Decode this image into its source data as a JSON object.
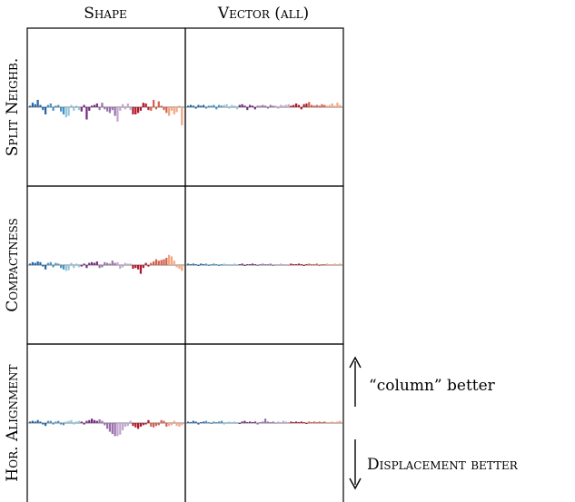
{
  "chart_data": {
    "type": "bar",
    "layout": "3x2 grid of small-multiple diverging bar charts",
    "column_headers": [
      "Shape",
      "Vector (all)"
    ],
    "row_headers": [
      "Split Neighb.",
      "Compactness",
      "Hor. Alignment"
    ],
    "palette": [
      "#2166ac",
      "#4393c3",
      "#92c5de",
      "#762a83",
      "#9970ab",
      "#c2a5cf",
      "#b2182b",
      "#d6604d",
      "#f4a582"
    ],
    "annotations": {
      "up": "“column” better",
      "down": "Displacement better"
    },
    "ylim": [
      -1,
      1
    ],
    "n_bars": 60,
    "panels": [
      {
        "row": 0,
        "col": 0,
        "values": [
          0.02,
          0.06,
          0.04,
          0.1,
          0.03,
          -0.04,
          -0.1,
          0.03,
          0.05,
          -0.05,
          0.02,
          0.03,
          -0.06,
          -0.1,
          -0.14,
          -0.12,
          0.03,
          -0.05,
          0.02,
          -0.04,
          -0.06,
          0.03,
          -0.17,
          -0.05,
          0.02,
          0.03,
          0.05,
          -0.04,
          0.06,
          -0.03,
          -0.06,
          -0.08,
          -0.04,
          -0.12,
          -0.2,
          -0.05,
          0.04,
          -0.03,
          0.05,
          -0.04,
          -0.1,
          -0.1,
          -0.08,
          -0.05,
          0.06,
          0.05,
          -0.04,
          -0.05,
          0.1,
          -0.03,
          0.08,
          0.02,
          -0.04,
          -0.08,
          -0.12,
          -0.05,
          -0.1,
          -0.07,
          0.02,
          -0.25
        ]
      },
      {
        "row": 0,
        "col": 1,
        "values": [
          0.02,
          0.03,
          0.02,
          -0.02,
          0.03,
          0.02,
          0.03,
          -0.02,
          0.02,
          0.02,
          0.03,
          -0.03,
          0.03,
          0.02,
          0.03,
          0.04,
          -0.02,
          0.03,
          0.02,
          -0.03,
          0.03,
          0.04,
          0.02,
          -0.04,
          0.03,
          0.02,
          -0.03,
          0.02,
          0.02,
          0.03,
          0.02,
          -0.02,
          0.03,
          0.02,
          0.02,
          -0.02,
          0.03,
          0.02,
          0.03,
          0.04,
          0.02,
          0.03,
          0.05,
          0.03,
          -0.03,
          0.04,
          0.05,
          0.07,
          0.03,
          0.02,
          0.03,
          0.02,
          0.04,
          0.03,
          0.02,
          0.03,
          0.05,
          0.02,
          0.06,
          0.03
        ]
      },
      {
        "row": 1,
        "col": 0,
        "values": [
          0.02,
          0.04,
          0.03,
          0.05,
          0.04,
          -0.02,
          -0.06,
          0.03,
          0.04,
          -0.03,
          0.03,
          0.02,
          -0.04,
          -0.06,
          -0.08,
          -0.07,
          0.03,
          -0.04,
          0.02,
          -0.03,
          -0.02,
          0.02,
          -0.04,
          0.03,
          0.04,
          0.03,
          0.05,
          -0.04,
          -0.03,
          0.04,
          0.03,
          0.02,
          0.06,
          0.03,
          0.04,
          -0.05,
          -0.03,
          0.03,
          0.02,
          0.02,
          -0.05,
          -0.04,
          -0.06,
          -0.12,
          -0.04,
          0.03,
          -0.02,
          0.03,
          0.05,
          0.08,
          0.06,
          0.07,
          0.08,
          0.1,
          0.14,
          0.12,
          0.06,
          -0.03,
          -0.05,
          -0.08
        ]
      },
      {
        "row": 1,
        "col": 1,
        "values": [
          0.02,
          0.01,
          0.02,
          0.01,
          -0.01,
          0.02,
          0.01,
          0.02,
          -0.01,
          0.01,
          0.02,
          0.01,
          -0.01,
          0.01,
          0.02,
          0.01,
          0.01,
          -0.01,
          0.02,
          0.01,
          0.01,
          0.02,
          -0.01,
          0.01,
          0.01,
          0.02,
          0.01,
          -0.01,
          0.01,
          0.02,
          0.01,
          0.01,
          0.02,
          -0.01,
          0.01,
          0.01,
          0.02,
          0.01,
          0.01,
          -0.01,
          0.02,
          0.01,
          0.01,
          0.02,
          0.01,
          -0.01,
          0.01,
          0.02,
          0.01,
          0.01,
          0.02,
          -0.01,
          0.01,
          0.01,
          0.02,
          0.01,
          0.01,
          0.02,
          0.01,
          0.02
        ]
      },
      {
        "row": 2,
        "col": 0,
        "values": [
          0.02,
          0.03,
          0.02,
          0.04,
          0.02,
          -0.02,
          -0.04,
          0.03,
          0.03,
          -0.02,
          0.02,
          0.03,
          -0.02,
          -0.03,
          0.02,
          0.03,
          0.04,
          -0.02,
          0.02,
          0.03,
          0.02,
          -0.02,
          0.03,
          0.04,
          0.06,
          0.04,
          0.03,
          0.05,
          0.03,
          -0.03,
          -0.08,
          -0.12,
          -0.15,
          -0.18,
          -0.18,
          -0.16,
          -0.1,
          -0.05,
          -0.04,
          0.03,
          -0.04,
          -0.06,
          -0.08,
          -0.05,
          -0.03,
          -0.02,
          0.04,
          -0.05,
          -0.06,
          -0.04,
          -0.03,
          0.04,
          0.03,
          -0.05,
          -0.04,
          -0.03,
          0.03,
          -0.04,
          -0.05,
          -0.03
        ]
      },
      {
        "row": 2,
        "col": 1,
        "values": [
          0.02,
          0.01,
          0.03,
          0.02,
          -0.02,
          0.01,
          0.02,
          0.03,
          0.01,
          -0.01,
          0.02,
          0.01,
          0.02,
          0.03,
          -0.02,
          0.01,
          0.02,
          0.01,
          0.02,
          0.01,
          -0.01,
          0.02,
          0.03,
          0.01,
          0.02,
          0.01,
          0.02,
          -0.02,
          0.01,
          0.02,
          0.06,
          0.02,
          0.01,
          0.02,
          -0.01,
          0.02,
          0.01,
          0.03,
          0.02,
          0.01,
          0.02,
          0.01,
          0.02,
          0.01,
          0.02,
          0.01,
          -0.01,
          0.02,
          0.01,
          0.02,
          0.01,
          0.02,
          0.01,
          0.02,
          0.01,
          0.01,
          0.02,
          0.01,
          0.02,
          0.03
        ]
      }
    ]
  }
}
